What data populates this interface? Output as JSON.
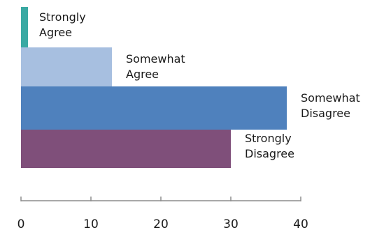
{
  "chart_data": {
    "type": "bar",
    "orientation": "horizontal",
    "categories": [
      "Strongly Agree",
      "Somewhat Agree",
      "Somewhat Disagree",
      "Strongly Disagree"
    ],
    "category_label_lines": [
      [
        "Strongly",
        "Agree"
      ],
      [
        "Somewhat",
        "Agree"
      ],
      [
        "Somewhat",
        "Disagree"
      ],
      [
        "Strongly",
        "Disagree"
      ]
    ],
    "values": [
      1,
      13,
      38,
      30
    ],
    "colors": [
      "#3aa9a3",
      "#a7bfe0",
      "#4f81bd",
      "#7f4f7a"
    ],
    "xlim": [
      0,
      40
    ],
    "xticks": [
      0,
      10,
      20,
      30,
      40
    ],
    "title": "",
    "xlabel": "",
    "ylabel": "",
    "legend": "none",
    "grid": false
  }
}
